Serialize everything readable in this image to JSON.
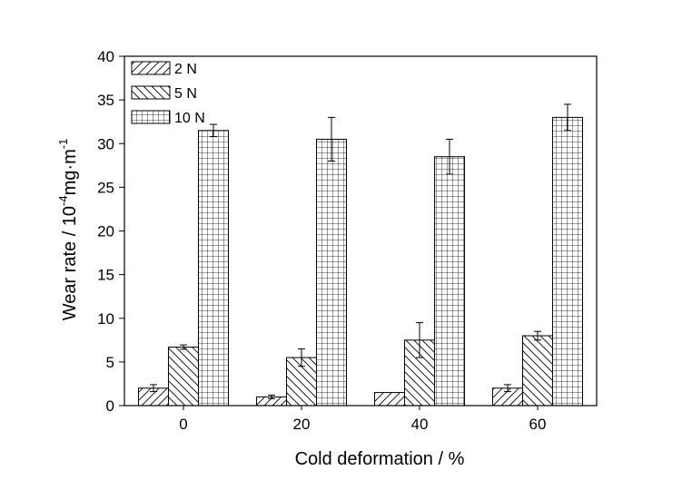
{
  "chart_data": {
    "type": "bar",
    "xlabel": "Cold deformation / %",
    "ylabel": {
      "prefix": "Wear rate / 10",
      "exp": "-4",
      "middle": "mg·m",
      "exp2": "-1"
    },
    "categories": [
      "0",
      "20",
      "40",
      "60"
    ],
    "ylim": [
      0,
      40
    ],
    "yticks": [
      0,
      5,
      10,
      15,
      20,
      25,
      30,
      35,
      40
    ],
    "grid": false,
    "legend_position": "top-left",
    "series": [
      {
        "name": "2 N",
        "pattern": "diagonal-up",
        "values": [
          2.0,
          1.0,
          1.5,
          2.0
        ],
        "errors": [
          0.4,
          0.2,
          0.0,
          0.4
        ]
      },
      {
        "name": "5 N",
        "pattern": "diagonal-down",
        "values": [
          6.7,
          5.5,
          7.5,
          8.0
        ],
        "errors": [
          0.25,
          1.0,
          2.0,
          0.5
        ]
      },
      {
        "name": "10 N",
        "pattern": "grid",
        "values": [
          31.5,
          30.5,
          28.5,
          33.0
        ],
        "errors": [
          0.7,
          2.5,
          2.0,
          1.5
        ]
      }
    ]
  }
}
